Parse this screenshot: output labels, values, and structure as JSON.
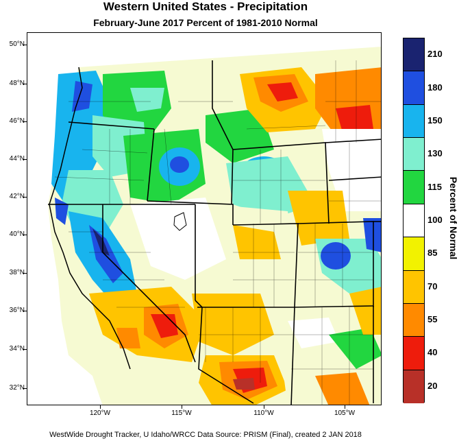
{
  "title": "Western United States - Precipitation",
  "subtitle": "February-June 2017  Percent of 1981-2010 Normal",
  "footer": "WestWide Drought Tracker, U Idaho/WRCC Data Source: PRISM (Final), created  2 JAN 2018",
  "colorbar": {
    "title": "Percent of Normal",
    "labels": [
      "210",
      "180",
      "150",
      "130",
      "115",
      "100",
      "85",
      "70",
      "55",
      "40",
      "20"
    ],
    "colors": [
      "#1a2370",
      "#1f4fe0",
      "#18b4ee",
      "#7fefcf",
      "#22d640",
      "#ffffff",
      "#f2f200",
      "#ffc400",
      "#ff8a00",
      "#ee1c0c",
      "#b83028"
    ]
  },
  "latitude_labels": [
    "50°N",
    "48°N",
    "46°N",
    "44°N",
    "42°N",
    "40°N",
    "38°N",
    "36°N",
    "34°N",
    "32°N"
  ],
  "longitude_labels": [
    "120°W",
    "115°W",
    "110°W",
    "105°W"
  ]
}
